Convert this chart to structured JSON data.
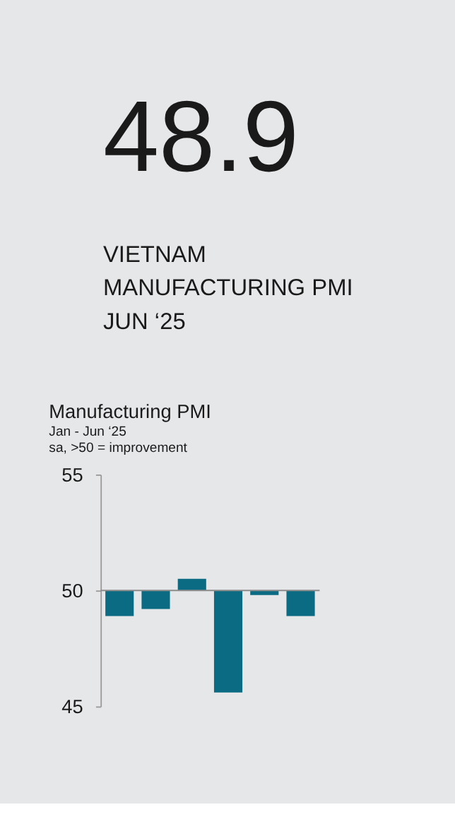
{
  "chart_data": {
    "type": "bar",
    "title": "Manufacturing PMI",
    "subtitle": [
      "Jan - Jun ‘25",
      "sa, >50 = improvement"
    ],
    "annotations": [
      "48.9",
      "VIETNAM",
      "MANUFACTURING PMI",
      "JUN ‘25"
    ],
    "categories": [
      null,
      null,
      null,
      null,
      null,
      null
    ],
    "values": [
      -1.1,
      -0.8,
      0.5,
      -4.4,
      -0.2,
      -1.1
    ],
    "base": [
      50,
      50,
      50,
      50,
      50,
      50
    ],
    "color": "#0b6b82",
    "ylim": [
      45,
      55
    ],
    "yticks": [
      45,
      50,
      55
    ],
    "ref_lines": [
      {
        "axis": "y",
        "value": 50,
        "color": "#8c8c8c"
      }
    ],
    "tick_labels": "y",
    "grid": false
  }
}
